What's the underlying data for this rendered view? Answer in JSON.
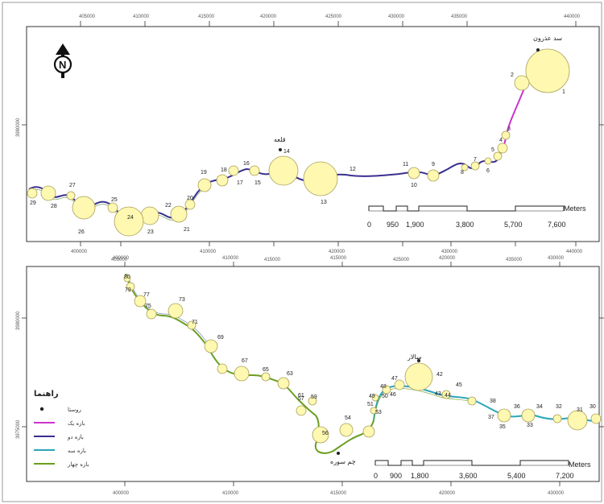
{
  "north_label": "N",
  "panels": [
    {
      "x_ticks": [
        "405000",
        "410000",
        "415000",
        "420000",
        "425000",
        "430000",
        "435000",
        "440000"
      ],
      "x_ticks_bottom": [
        "400000",
        "405000",
        "410000",
        "415000",
        "420000",
        "425000",
        "430000",
        "435000",
        "440000"
      ],
      "y_ticks": [
        "3980000"
      ],
      "places": [
        {
          "name": "سد عذرون"
        },
        {
          "name": "قلعه"
        }
      ],
      "scale": {
        "unit": "Meters",
        "labels": [
          "0",
          "950",
          "1,900",
          "3,800",
          "5,700",
          "7,600"
        ]
      }
    },
    {
      "x_ticks": [
        "400000",
        "405000",
        "410000",
        "415000",
        "420000",
        "425000",
        "430000"
      ],
      "x_ticks_bottom": [
        "400000",
        "405000",
        "410000",
        "415000",
        "420000",
        "425000",
        "430000"
      ],
      "y_ticks": [
        "3980000",
        "3975000"
      ],
      "places": [
        {
          "name": "سالار"
        },
        {
          "name": "چم سوره"
        }
      ],
      "scale": {
        "unit": "Meters",
        "labels": [
          "0",
          "900",
          "1,800",
          "3,600",
          "5,400",
          "7,200"
        ]
      }
    }
  ],
  "legend": {
    "title": "راهنما",
    "items": [
      {
        "label": "روستا",
        "color": "#222222",
        "kind": "point"
      },
      {
        "label": "بازه یک",
        "color": "#cc33cc",
        "kind": "line"
      },
      {
        "label": "بازه دو",
        "color": "#3a2f8f",
        "kind": "line"
      },
      {
        "label": "بازه سه",
        "color": "#2aa6b8",
        "kind": "line"
      },
      {
        "label": "بازه چهار",
        "color": "#6a9e1f",
        "kind": "line"
      }
    ]
  },
  "reach_colors": {
    "one": "#cc33cc",
    "two": "#3a2f8f",
    "three": "#2aa6b8",
    "four": "#6a9e1f",
    "circle_fill": "#fff8b0",
    "circle_stroke": "#a89f5a"
  },
  "circles_top": [
    {
      "id": "1",
      "label": "1"
    },
    {
      "id": "2",
      "label": "2"
    },
    {
      "id": "3",
      "label": "3"
    },
    {
      "id": "4",
      "label": "4"
    },
    {
      "id": "5",
      "label": "5"
    },
    {
      "id": "6",
      "label": "6"
    },
    {
      "id": "7",
      "label": "7"
    },
    {
      "id": "8",
      "label": "8"
    },
    {
      "id": "9",
      "label": "9"
    },
    {
      "id": "10",
      "label": "10"
    },
    {
      "id": "11",
      "label": "11"
    },
    {
      "id": "12",
      "label": "12"
    },
    {
      "id": "13",
      "label": "13"
    },
    {
      "id": "14",
      "label": "14"
    },
    {
      "id": "15",
      "label": "15"
    },
    {
      "id": "16",
      "label": "16"
    },
    {
      "id": "17",
      "label": "17"
    },
    {
      "id": "18",
      "label": "18"
    },
    {
      "id": "19",
      "label": "19"
    },
    {
      "id": "20",
      "label": "20"
    },
    {
      "id": "21",
      "label": "21"
    },
    {
      "id": "22",
      "label": "22"
    },
    {
      "id": "23",
      "label": "23"
    },
    {
      "id": "24",
      "label": "24"
    },
    {
      "id": "25",
      "label": "25"
    },
    {
      "id": "26",
      "label": "26"
    },
    {
      "id": "27",
      "label": "27"
    },
    {
      "id": "28",
      "label": "28"
    },
    {
      "id": "29",
      "label": "29"
    }
  ],
  "circles_bottom": [
    {
      "id": "30",
      "label": "30"
    },
    {
      "id": "31",
      "label": "31"
    },
    {
      "id": "32",
      "label": "32"
    },
    {
      "id": "33",
      "label": "33"
    },
    {
      "id": "34",
      "label": "34"
    },
    {
      "id": "35",
      "label": "35"
    },
    {
      "id": "36",
      "label": "36"
    },
    {
      "id": "37",
      "label": "37"
    },
    {
      "id": "38",
      "label": "38"
    },
    {
      "id": "42",
      "label": "42"
    },
    {
      "id": "43",
      "label": "43"
    },
    {
      "id": "44",
      "label": "44"
    },
    {
      "id": "45",
      "label": "45"
    },
    {
      "id": "46",
      "label": "46"
    },
    {
      "id": "47",
      "label": "47"
    },
    {
      "id": "48",
      "label": "48"
    },
    {
      "id": "49",
      "label": "49"
    },
    {
      "id": "50",
      "label": "50"
    },
    {
      "id": "51",
      "label": "51"
    },
    {
      "id": "53",
      "label": "53"
    },
    {
      "id": "54",
      "label": "54"
    },
    {
      "id": "56",
      "label": "56"
    },
    {
      "id": "57",
      "label": "57"
    },
    {
      "id": "59",
      "label": "59"
    },
    {
      "id": "61",
      "label": "61"
    },
    {
      "id": "63",
      "label": "63"
    },
    {
      "id": "65",
      "label": "65"
    },
    {
      "id": "67",
      "label": "67"
    },
    {
      "id": "69",
      "label": "69"
    },
    {
      "id": "71",
      "label": "71"
    },
    {
      "id": "73",
      "label": "73"
    },
    {
      "id": "75",
      "label": "75"
    },
    {
      "id": "77",
      "label": "77"
    },
    {
      "id": "79",
      "label": "79"
    },
    {
      "id": "80",
      "label": "80"
    }
  ]
}
